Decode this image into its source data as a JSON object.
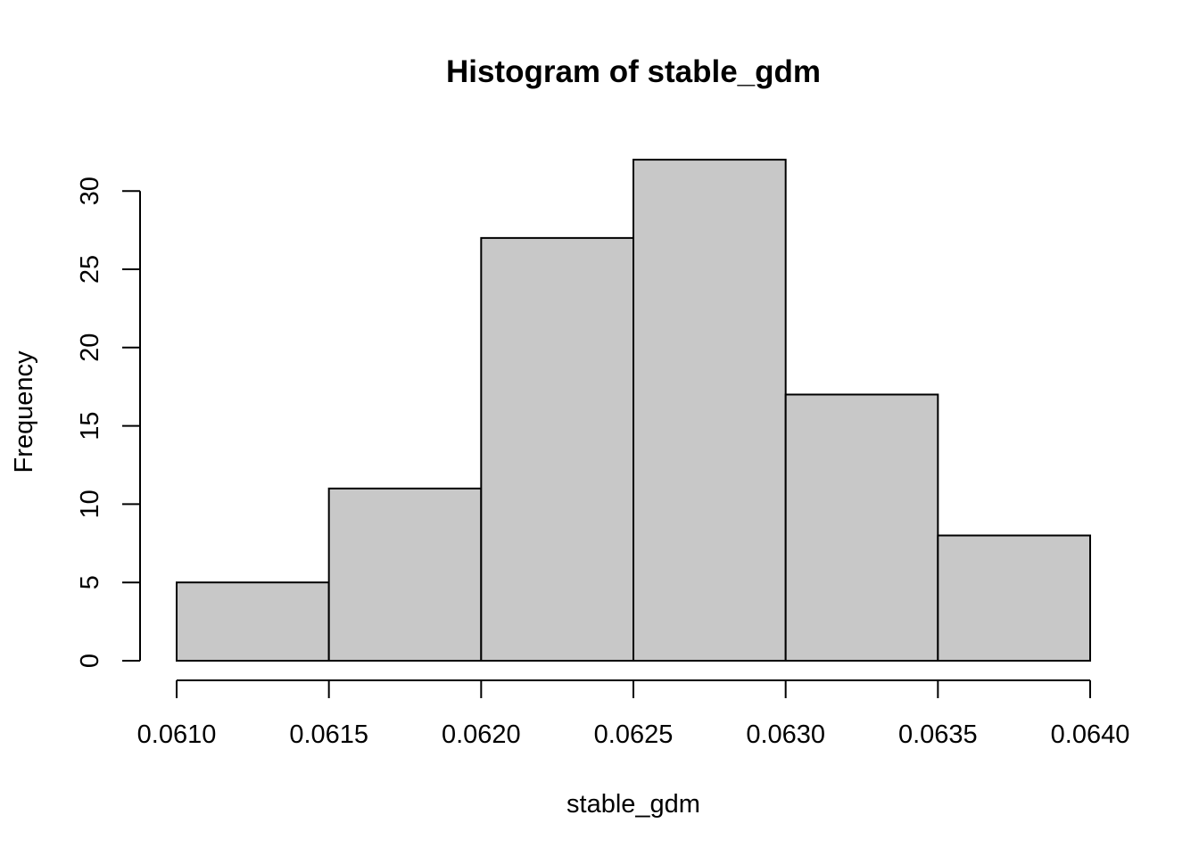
{
  "chart_data": {
    "type": "bar",
    "title": "Histogram of stable_gdm",
    "xlabel": "stable_gdm",
    "ylabel": "Frequency",
    "bins": [
      {
        "start": 0.061,
        "end": 0.0615,
        "count": 5
      },
      {
        "start": 0.0615,
        "end": 0.062,
        "count": 11
      },
      {
        "start": 0.062,
        "end": 0.0625,
        "count": 27
      },
      {
        "start": 0.0625,
        "end": 0.063,
        "count": 32
      },
      {
        "start": 0.063,
        "end": 0.0635,
        "count": 17
      },
      {
        "start": 0.0635,
        "end": 0.064,
        "count": 8
      }
    ],
    "xlim": [
      0.061,
      0.064
    ],
    "ylim": [
      0,
      32
    ],
    "x_ticks": [
      "0.0610",
      "0.0615",
      "0.0620",
      "0.0625",
      "0.0630",
      "0.0635",
      "0.0640"
    ],
    "y_ticks": [
      "0",
      "5",
      "10",
      "15",
      "20",
      "25",
      "30"
    ],
    "grid": false,
    "colors": {
      "bar_fill": "#c8c8c8",
      "bar_stroke": "#000000",
      "background": "#ffffff"
    }
  }
}
